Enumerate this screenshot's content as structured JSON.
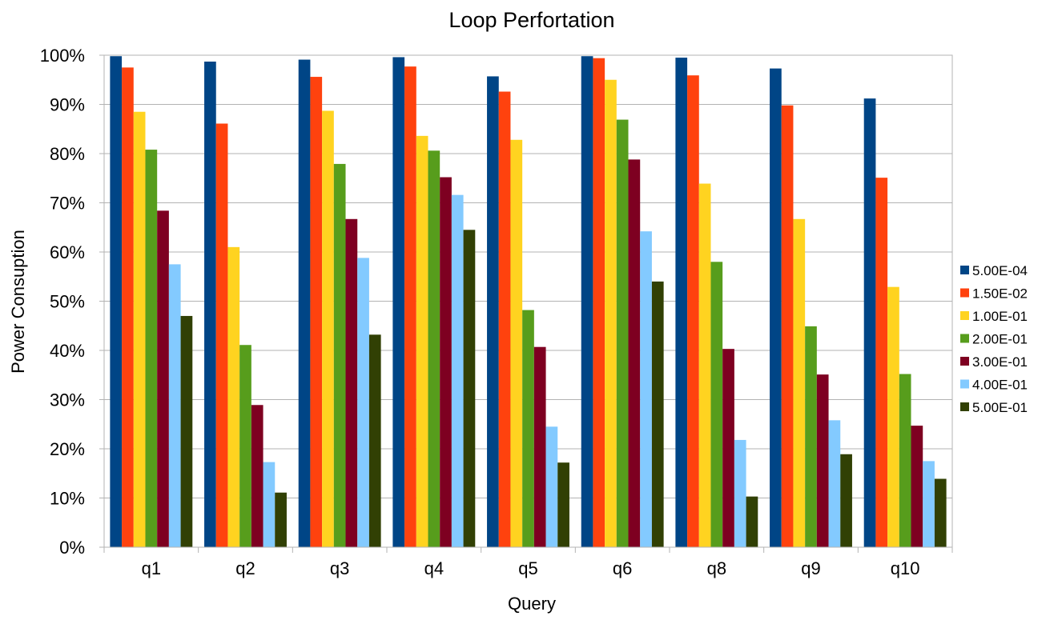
{
  "chart_data": {
    "type": "bar",
    "title": "Loop Perfortation",
    "xlabel": "Query",
    "ylabel": "Power Consuption",
    "ylim": [
      0,
      100
    ],
    "yticks": [
      0,
      10,
      20,
      30,
      40,
      50,
      60,
      70,
      80,
      90,
      100
    ],
    "ytick_suffix": "%",
    "grid": true,
    "legend_position": "right",
    "categories": [
      "q1",
      "q2",
      "q3",
      "q4",
      "q5",
      "q6",
      "q8",
      "q9",
      "q10"
    ],
    "series": [
      {
        "name": "5.00E-04",
        "color": "#004586",
        "values": [
          99.8,
          98.7,
          99.1,
          99.6,
          95.7,
          99.8,
          99.5,
          97.3,
          91.2
        ]
      },
      {
        "name": "1.50E-02",
        "color": "#ff420e",
        "values": [
          97.5,
          86.1,
          95.6,
          97.7,
          92.6,
          99.4,
          95.9,
          89.8,
          75.1
        ]
      },
      {
        "name": "1.00E-01",
        "color": "#ffd320",
        "values": [
          88.5,
          61.0,
          88.7,
          83.6,
          82.8,
          95.0,
          73.9,
          66.7,
          52.9
        ]
      },
      {
        "name": "2.00E-01",
        "color": "#579d1c",
        "values": [
          80.8,
          41.1,
          77.9,
          80.6,
          48.2,
          86.9,
          58.0,
          44.9,
          35.2
        ]
      },
      {
        "name": "3.00E-01",
        "color": "#7e0021",
        "values": [
          68.4,
          28.9,
          66.7,
          75.2,
          40.7,
          78.8,
          40.3,
          35.1,
          24.7
        ]
      },
      {
        "name": "4.00E-01",
        "color": "#83caff",
        "values": [
          57.5,
          17.3,
          58.8,
          71.6,
          24.5,
          64.2,
          21.8,
          25.8,
          17.5
        ]
      },
      {
        "name": "5.00E-01",
        "color": "#314004",
        "values": [
          47.0,
          11.1,
          43.2,
          64.5,
          17.2,
          54.0,
          10.3,
          18.9,
          13.9
        ]
      }
    ]
  }
}
